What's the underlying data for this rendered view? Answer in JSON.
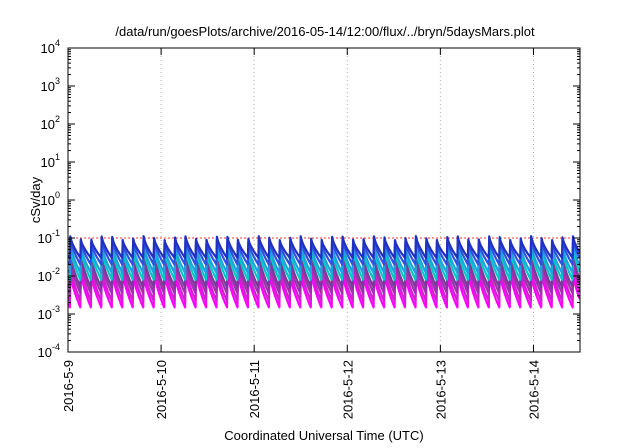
{
  "chart_data": {
    "type": "line",
    "title": "/data/run/goesPlots/archive/2016-05-14/12:00/flux/../bryn/5daysMars.plot",
    "xlabel": "Coordinated Universal Time (UTC)",
    "ylabel": "cSv/day",
    "yscale": "log",
    "ylim": [
      0.0001,
      10000
    ],
    "y_ticks": [
      {
        "base": "10",
        "exp": "4"
      },
      {
        "base": "10",
        "exp": "3"
      },
      {
        "base": "10",
        "exp": "2"
      },
      {
        "base": "10",
        "exp": "1"
      },
      {
        "base": "10",
        "exp": "0"
      },
      {
        "base": "10",
        "exp": "-1"
      },
      {
        "base": "10",
        "exp": "-2"
      },
      {
        "base": "10",
        "exp": "-3"
      },
      {
        "base": "10",
        "exp": "-4"
      }
    ],
    "x_ticks": [
      "2016-5-9",
      "2016-5-10",
      "2016-5-11",
      "2016-5-12",
      "2016-5-13",
      "2016-5-14"
    ],
    "xlim": [
      "2016-05-09T00:00",
      "2016-05-14T12:00"
    ],
    "grid": "vertical dotted at each day",
    "cycle_hours": 2.7,
    "series": [
      {
        "color": "#ff00ff",
        "peak": 0.012,
        "trough": 0.0015
      },
      {
        "color": "#d020d0",
        "peak": 0.018,
        "trough": 0.0022
      },
      {
        "color": "#a030b0",
        "peak": 0.025,
        "trough": 0.0035
      },
      {
        "color": "#7a3a9a",
        "peak": 0.035,
        "trough": 0.005
      },
      {
        "color": "#00c8c8",
        "peak": 0.05,
        "trough": 0.008
      },
      {
        "color": "#20a0e0",
        "peak": 0.065,
        "trough": 0.012
      },
      {
        "color": "#3050e0",
        "peak": 0.085,
        "trough": 0.02
      },
      {
        "color": "#2030c0",
        "peak": 0.1,
        "trough": 0.03
      }
    ],
    "reference_line": {
      "value": 0.1,
      "color": "#ff3030",
      "style": "dotted"
    }
  }
}
